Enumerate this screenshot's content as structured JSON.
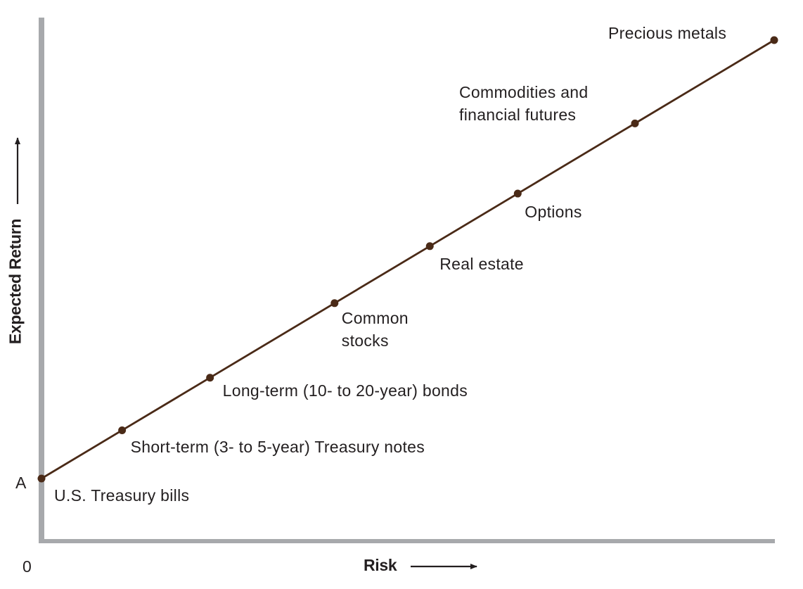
{
  "chart_data": {
    "type": "line",
    "xlabel": "Risk",
    "ylabel": "Expected Return",
    "origin_label": "0",
    "intercept_label": "A",
    "grid": false,
    "x_ticks_shown": false,
    "y_ticks_shown": false,
    "colors": {
      "line": "#4a2a17",
      "marker": "#4a2a17",
      "axis": "#a7a9ac",
      "text": "#231f20"
    },
    "points": [
      {
        "label": "U.S. Treasury bills",
        "x": 0.0,
        "y": 0.0
      },
      {
        "label": "Short-term (3- to 5-year) Treasury notes",
        "x": 0.11,
        "y": 0.11
      },
      {
        "label": "Long-term (10- to 20-year) bonds",
        "x": 0.23,
        "y": 0.23
      },
      {
        "label": "Common\nstocks",
        "x": 0.4,
        "y": 0.4
      },
      {
        "label": "Real estate",
        "x": 0.53,
        "y": 0.53
      },
      {
        "label": "Options",
        "x": 0.65,
        "y": 0.65
      },
      {
        "label": "Commodities and\nfinancial futures",
        "x": 0.81,
        "y": 0.81
      },
      {
        "label": "Precious metals",
        "x": 1.0,
        "y": 1.0
      }
    ]
  }
}
